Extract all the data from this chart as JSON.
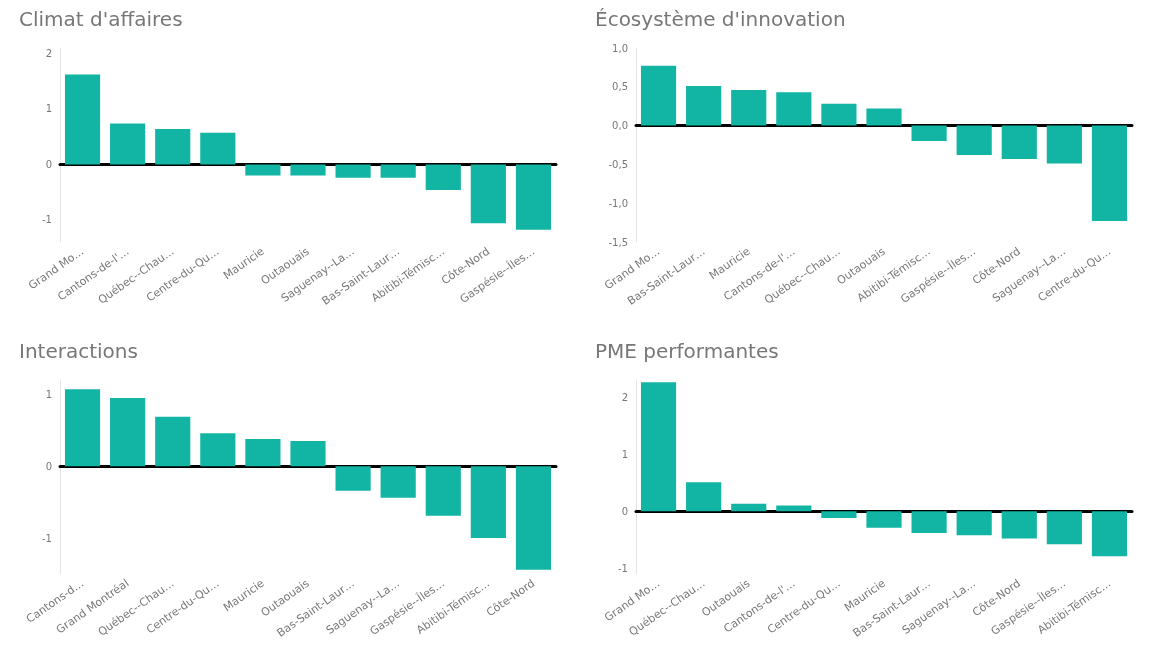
{
  "chart_data": [
    {
      "type": "bar",
      "title": "Climat d'affaires",
      "categories": [
        "Grand Mo…",
        "Cantons-de-l'…",
        "Québec--Chau…",
        "Centre-du-Qu…",
        "Mauricie",
        "Outaouais",
        "Saguenay--La…",
        "Bas-Saint-Laur…",
        "Abitibi-Témisc…",
        "Côte-Nord",
        "Gaspésie--Îles…"
      ],
      "values": [
        1.62,
        0.74,
        0.64,
        0.57,
        -0.2,
        -0.2,
        -0.24,
        -0.24,
        -0.46,
        -1.06,
        -1.18
      ],
      "color": "#12b5a3",
      "ylim": [
        -1.4,
        2.1
      ],
      "yticks": [
        -1,
        0,
        1,
        2
      ]
    },
    {
      "type": "bar",
      "title": "Écosystème d'innovation",
      "categories": [
        "Grand Mo…",
        "Bas-Saint-Laur…",
        "Mauricie",
        "Cantons-de-l'…",
        "Québec--Chau…",
        "Outaouais",
        "Abitibi-Témisc…",
        "Gaspésie--Îles…",
        "Côte-Nord",
        "Saguenay--La…",
        "Centre-du-Qu…"
      ],
      "values": [
        0.77,
        0.51,
        0.46,
        0.43,
        0.28,
        0.22,
        -0.2,
        -0.38,
        -0.43,
        -0.49,
        -1.23
      ],
      "color": "#12b5a3",
      "ylim": [
        -1.5,
        1.0
      ],
      "yticks": [
        {
          "value": -1.5,
          "label": "-1,5"
        },
        {
          "value": -1,
          "label": "-1,0"
        },
        {
          "value": -0.5,
          "label": "-0,5"
        },
        {
          "value": 0,
          "label": "0,0"
        },
        {
          "value": 0.5,
          "label": "0,5"
        },
        {
          "value": 1,
          "label": "1,0"
        }
      ]
    },
    {
      "type": "bar",
      "title": "Interactions",
      "categories": [
        "Cantons-d…",
        "Grand Montréal",
        "Québec--Chau…",
        "Centre-du-Qu…",
        "Mauricie",
        "Outaouais",
        "Bas-Saint-Laur…",
        "Saguenay--La…",
        "Gaspésie--Îles…",
        "Abitibi-Témisc…",
        "Côte-Nord"
      ],
      "values": [
        1.07,
        0.95,
        0.69,
        0.46,
        0.38,
        0.35,
        -0.34,
        -0.44,
        -0.69,
        -1.0,
        -1.44
      ],
      "color": "#12b5a3",
      "ylim": [
        -1.5,
        1.2
      ],
      "yticks": [
        -1,
        0,
        1
      ]
    },
    {
      "type": "bar",
      "title": "PME performantes",
      "categories": [
        "Grand Mo…",
        "Québec--Chau…",
        "Outaouais",
        "Cantons-de-l'…",
        "Centre-du-Qu…",
        "Mauricie",
        "Bas-Saint-Laur…",
        "Saguenay--La…",
        "Côte-Nord",
        "Gaspésie--Îles…",
        "Abitibi-Témisc…"
      ],
      "values": [
        2.26,
        0.51,
        0.13,
        0.1,
        -0.12,
        -0.29,
        -0.38,
        -0.42,
        -0.48,
        -0.58,
        -0.79
      ],
      "color": "#12b5a3",
      "ylim": [
        -1.1,
        2.3
      ],
      "yticks": [
        -1,
        0,
        1,
        2
      ]
    }
  ]
}
